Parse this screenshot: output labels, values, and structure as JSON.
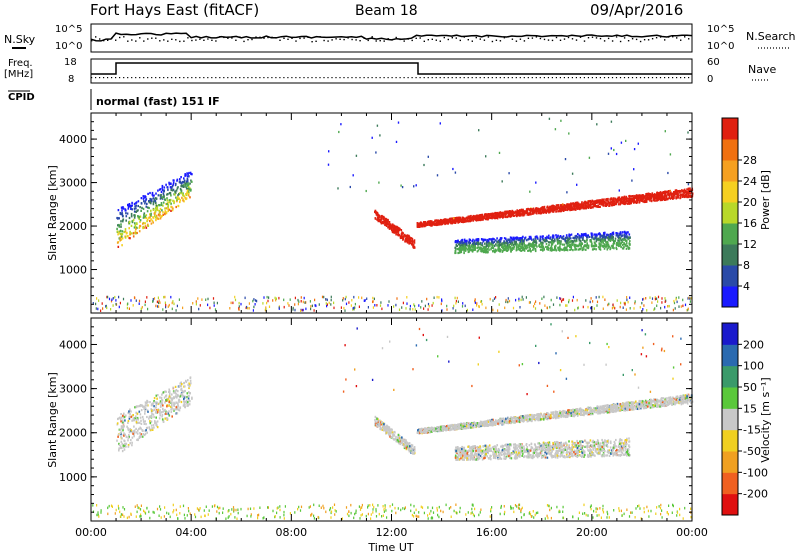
{
  "header": {
    "station": "Fort Hays East (fitACF)",
    "beam": "Beam 18",
    "date": "09/Apr/2016"
  },
  "top_labels": {
    "nsky": "N.Sky",
    "nsky_hi": "10^5",
    "nsky_lo": "10^0",
    "nsearch": "N.Search",
    "nsearch_hi": "10^5",
    "nsearch_lo": "10^0",
    "freq": "Freq.",
    "freq_unit": "[MHz]",
    "freq_hi": "18",
    "freq_lo": "8",
    "nave": "Nave",
    "nave_hi": "60",
    "nave_lo": "0",
    "cpid": "CPID",
    "cpid_value": "normal (fast) 151 IF"
  },
  "chart_data": [
    {
      "type": "heatmap",
      "name": "power",
      "xlabel": "",
      "ylabel": "Slant Range [km]",
      "x_ticks": [
        "00:00",
        "04:00",
        "08:00",
        "12:00",
        "16:00",
        "20:00",
        "00:00"
      ],
      "x_hours": [
        0,
        24
      ],
      "ylim": [
        0,
        4600
      ],
      "y_ticks": [
        1000,
        2000,
        3000,
        4000
      ],
      "colorbar_label": "Power [dB]",
      "colorbar_ticks": [
        "4",
        "8",
        "12",
        "16",
        "20",
        "24",
        "28"
      ],
      "colorbar_colors": [
        "#1a1aff",
        "#2a4aa8",
        "#3c7a5a",
        "#4fa84f",
        "#b8d829",
        "#f5d020",
        "#f5a020",
        "#f07010",
        "#e02010"
      ],
      "scatter_bands": [
        {
          "t0": 1.0,
          "t1": 4.0,
          "r0": [
            1500,
            2400
          ],
          "r1": [
            2700,
            3300
          ]
        },
        {
          "t0": 11.3,
          "t1": 12.9,
          "r0": [
            2400,
            2200
          ],
          "r1": [
            1700,
            1500
          ]
        },
        {
          "t0": 13.0,
          "t1": 24.0,
          "r0": [
            2100,
            2000
          ],
          "r1": [
            2900,
            2700
          ]
        },
        {
          "t0": 14.5,
          "t1": 21.5,
          "r0": [
            1400,
            1700
          ],
          "r1": [
            1500,
            1900
          ]
        }
      ]
    },
    {
      "type": "heatmap",
      "name": "velocity",
      "xlabel": "Time UT",
      "ylabel": "Slant Range [km]",
      "x_ticks": [
        "00:00",
        "04:00",
        "08:00",
        "12:00",
        "16:00",
        "20:00",
        "00:00"
      ],
      "x_hours": [
        0,
        24
      ],
      "ylim": [
        0,
        4600
      ],
      "y_ticks": [
        1000,
        2000,
        3000,
        4000
      ],
      "colorbar_label": "Velocity [m s⁻¹]",
      "colorbar_ticks": [
        "200",
        "100",
        "50",
        "15",
        "-15",
        "-50",
        "-100",
        "-200"
      ],
      "colorbar_colors": [
        "#1a1acc",
        "#2a6ab0",
        "#3a9a6a",
        "#5ac83a",
        "#c8c8c8",
        "#f0d020",
        "#f0a020",
        "#f06020",
        "#e01010"
      ],
      "scatter_bands": [
        {
          "t0": 1.0,
          "t1": 4.0,
          "r0": [
            1500,
            2400
          ],
          "r1": [
            2700,
            3300
          ]
        },
        {
          "t0": 11.3,
          "t1": 12.9,
          "r0": [
            2400,
            2200
          ],
          "r1": [
            1700,
            1500
          ]
        },
        {
          "t0": 13.0,
          "t1": 24.0,
          "r0": [
            2100,
            2000
          ],
          "r1": [
            2900,
            2700
          ]
        },
        {
          "t0": 14.5,
          "t1": 21.5,
          "r0": [
            1400,
            1700
          ],
          "r1": [
            1500,
            1900
          ]
        }
      ]
    }
  ]
}
